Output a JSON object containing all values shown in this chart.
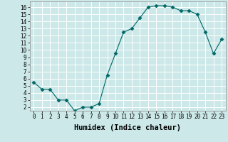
{
  "x": [
    0,
    1,
    2,
    3,
    4,
    5,
    6,
    7,
    8,
    9,
    10,
    11,
    12,
    13,
    14,
    15,
    16,
    17,
    18,
    19,
    20,
    21,
    22,
    23
  ],
  "y": [
    5.5,
    4.5,
    4.5,
    3.0,
    3.0,
    1.5,
    2.0,
    2.0,
    2.5,
    6.5,
    9.5,
    12.5,
    13.0,
    14.5,
    16.0,
    16.2,
    16.2,
    16.0,
    15.5,
    15.5,
    15.0,
    12.5,
    9.5,
    11.5
  ],
  "line_color": "#006666",
  "marker": "D",
  "marker_size": 2.5,
  "bg_color": "#cce8e8",
  "grid_color": "#ffffff",
  "xlabel": "Humidex (Indice chaleur)",
  "xlim": [
    -0.5,
    23.5
  ],
  "ylim": [
    1.5,
    16.8
  ],
  "xticks": [
    0,
    1,
    2,
    3,
    4,
    5,
    6,
    7,
    8,
    9,
    10,
    11,
    12,
    13,
    14,
    15,
    16,
    17,
    18,
    19,
    20,
    21,
    22,
    23
  ],
  "yticks": [
    2,
    3,
    4,
    5,
    6,
    7,
    8,
    9,
    10,
    11,
    12,
    13,
    14,
    15,
    16
  ],
  "tick_fontsize": 5.5,
  "label_fontsize": 7.5
}
